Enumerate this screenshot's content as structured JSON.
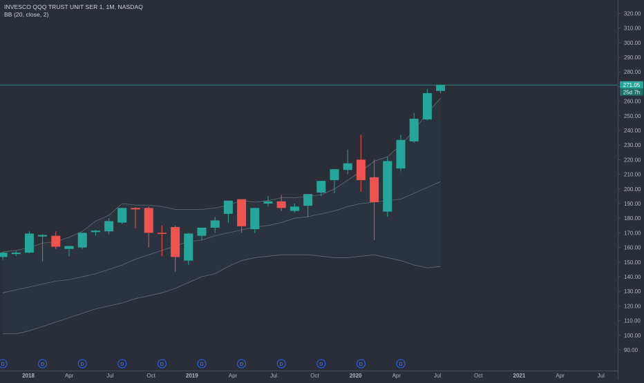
{
  "header": {
    "symbol_line": "INVESCO QQQ TRUST UNIT SER 1, 1M, NASDAQ",
    "indicator_line": "BB (20, close, 2)"
  },
  "price_tag": {
    "price": "271.05",
    "countdown": "25d 7h"
  },
  "dividend_marker_label": "D",
  "colors": {
    "background": "#2a2e39",
    "up": "#26a69a",
    "down": "#ef5350",
    "band": "#7a7f8c",
    "text": "#b2b5be",
    "grid": "#363a45"
  },
  "chart_data": {
    "type": "candlestick",
    "title": "INVESCO QQQ TRUST UNIT SER 1, 1M, NASDAQ",
    "indicator": "BB (20, close, 2)",
    "ylim": [
      88,
      328
    ],
    "y_ticks": [
      90,
      100,
      110,
      120,
      130,
      140,
      150,
      160,
      170,
      180,
      190,
      200,
      210,
      220,
      230,
      240,
      250,
      260,
      270,
      280,
      290,
      300,
      310,
      320
    ],
    "y_tick_labels": [
      "90.00",
      "100.00",
      "110.00",
      "120.00",
      "130.00",
      "140.00",
      "150.00",
      "160.00",
      "170.00",
      "180.00",
      "190.00",
      "200.00",
      "210.00",
      "220.00",
      "230.00",
      "240.00",
      "250.00",
      "260.00",
      "270.00",
      "280.00",
      "290.00",
      "300.00",
      "310.00",
      "320.00"
    ],
    "x_axis_labels": [
      "2018",
      "Apr",
      "Jul",
      "Oct",
      "2019",
      "Apr",
      "Jul",
      "Oct",
      "2020",
      "Apr",
      "Jul",
      "Oct",
      "2021",
      "Apr",
      "Jul"
    ],
    "x_axis_bold": [
      true,
      false,
      false,
      false,
      true,
      false,
      false,
      false,
      true,
      false,
      false,
      false,
      true,
      false,
      false
    ],
    "candles": [
      {
        "date": "2017-12",
        "o": 153.5,
        "h": 157,
        "l": 151.5,
        "c": 156.5
      },
      {
        "date": "2018-01",
        "o": 155.5,
        "h": 158,
        "l": 154,
        "c": 156.5
      },
      {
        "date": "2018-02",
        "o": 156.5,
        "h": 171,
        "l": 156,
        "c": 169.5
      },
      {
        "date": "2018-03",
        "o": 167.5,
        "h": 169,
        "l": 150.5,
        "c": 168.5
      },
      {
        "date": "2018-04",
        "o": 168,
        "h": 171,
        "l": 159,
        "c": 160.5
      },
      {
        "date": "2018-05",
        "o": 159,
        "h": 161,
        "l": 154,
        "c": 161
      },
      {
        "date": "2018-06",
        "o": 160,
        "h": 170,
        "l": 159,
        "c": 170
      },
      {
        "date": "2018-07",
        "o": 170.5,
        "h": 172,
        "l": 168,
        "c": 171.5
      },
      {
        "date": "2018-08",
        "o": 171,
        "h": 180,
        "l": 169,
        "c": 178
      },
      {
        "date": "2018-09",
        "o": 177,
        "h": 187,
        "l": 176,
        "c": 187
      },
      {
        "date": "2018-10",
        "o": 187,
        "h": 187.5,
        "l": 173,
        "c": 186
      },
      {
        "date": "2018-11",
        "o": 187,
        "h": 188,
        "l": 160,
        "c": 170
      },
      {
        "date": "2018-12",
        "o": 170,
        "h": 175,
        "l": 154,
        "c": 169.5
      },
      {
        "date": "2019-01",
        "o": 174,
        "h": 175,
        "l": 143.5,
        "c": 153.5
      },
      {
        "date": "2019-02",
        "o": 151,
        "h": 170,
        "l": 148,
        "c": 169.5
      },
      {
        "date": "2019-03",
        "o": 168,
        "h": 173.5,
        "l": 165,
        "c": 173.5
      },
      {
        "date": "2019-04",
        "o": 173.5,
        "h": 181,
        "l": 170,
        "c": 178.5
      },
      {
        "date": "2019-05",
        "o": 183,
        "h": 192,
        "l": 177,
        "c": 192
      },
      {
        "date": "2019-06",
        "o": 193,
        "h": 193,
        "l": 170,
        "c": 174.5
      },
      {
        "date": "2019-07",
        "o": 172.5,
        "h": 187,
        "l": 170,
        "c": 187
      },
      {
        "date": "2019-08",
        "o": 190,
        "h": 195,
        "l": 188,
        "c": 191.5
      },
      {
        "date": "2019-09",
        "o": 191.5,
        "h": 196,
        "l": 185,
        "c": 187
      },
      {
        "date": "2019-10",
        "o": 185,
        "h": 190,
        "l": 184,
        "c": 188
      },
      {
        "date": "2019-11",
        "o": 188.5,
        "h": 196.5,
        "l": 181,
        "c": 196.5
      },
      {
        "date": "2019-12",
        "o": 197.5,
        "h": 205.5,
        "l": 195,
        "c": 205.5
      },
      {
        "date": "2020-01",
        "o": 206,
        "h": 213,
        "l": 197,
        "c": 213.5
      },
      {
        "date": "2020-02",
        "o": 213,
        "h": 227,
        "l": 210,
        "c": 217.5
      },
      {
        "date": "2020-03",
        "o": 220,
        "h": 237,
        "l": 198,
        "c": 206
      },
      {
        "date": "2020-04",
        "o": 208,
        "h": 220,
        "l": 165,
        "c": 191
      },
      {
        "date": "2020-05",
        "o": 184.5,
        "h": 222,
        "l": 181,
        "c": 219
      },
      {
        "date": "2020-06",
        "o": 214,
        "h": 237,
        "l": 212,
        "c": 233.5
      },
      {
        "date": "2020-07",
        "o": 232.5,
        "h": 252,
        "l": 231.5,
        "c": 248
      },
      {
        "date": "2020-08",
        "o": 247.5,
        "h": 268.5,
        "l": 247,
        "c": 265.5
      },
      {
        "date": "2020-09",
        "o": 267,
        "h": 271.5,
        "l": 265.5,
        "c": 271.05
      }
    ],
    "bb_upper": [
      157,
      158,
      160,
      163,
      164,
      167,
      171,
      178,
      182,
      190,
      189,
      189,
      188,
      186,
      186,
      186,
      187,
      189,
      192,
      191,
      192,
      194,
      194,
      195,
      196,
      200,
      206,
      212,
      219,
      222,
      230,
      240,
      252,
      262
    ],
    "bb_middle": [
      129,
      131,
      133,
      135,
      137,
      138,
      140,
      142,
      145,
      148,
      152,
      155,
      158,
      161,
      164,
      165,
      168,
      170,
      172,
      174,
      175,
      177,
      180,
      181,
      183,
      185,
      188,
      190,
      191,
      192,
      193,
      197,
      201,
      205
    ],
    "bb_lower": [
      101,
      101,
      103,
      106,
      109,
      112,
      115,
      118,
      120,
      122,
      125,
      127,
      129,
      132,
      136,
      140,
      142,
      147,
      151,
      153,
      154,
      155,
      155,
      155,
      154,
      153,
      153,
      154,
      155,
      153,
      151,
      148,
      146,
      147
    ],
    "dividend_months": [
      "2017-12",
      "2018-03",
      "2018-06",
      "2018-09",
      "2018-12",
      "2019-03",
      "2019-06",
      "2019-09",
      "2019-12",
      "2020-03",
      "2020-06"
    ],
    "current_price": 271.05
  }
}
